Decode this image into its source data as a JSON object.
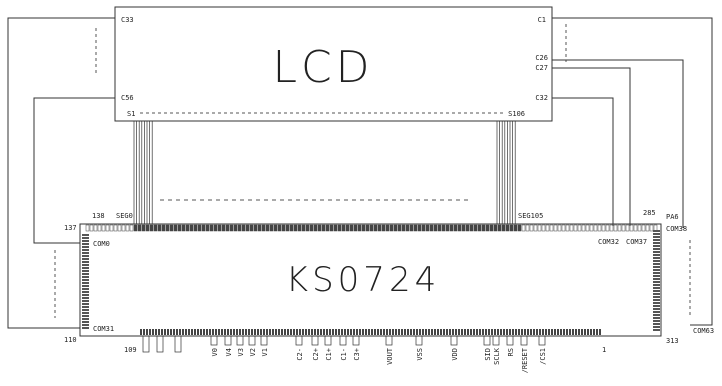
{
  "lcd": {
    "title": "LCD",
    "corner_top_left": "C33",
    "corner_top_right": "C1",
    "left_mid": "C56",
    "right_labels": [
      "C26",
      "C27",
      "C32"
    ],
    "seg_left": "S1",
    "seg_right": "S106"
  },
  "ic": {
    "title": "KS0724",
    "top_labels": {
      "n138": "138",
      "seg0": "SEG0",
      "seg105": "SEG105",
      "n285": "285",
      "com32": "COM32",
      "com37": "COM37"
    },
    "left_labels": {
      "n137": "137",
      "com0": "COM0",
      "com31": "COM31",
      "n110": "110"
    },
    "right_labels": {
      "pa6": "PA6",
      "com38": "COM38",
      "com63": "COM63",
      "n313": "313"
    },
    "bottom_labels": {
      "n109": "109",
      "n1": "1"
    },
    "bottom_pins": [
      "V0",
      "V4",
      "V3",
      "V2",
      "V1",
      "C2-",
      "C2+",
      "C1+",
      "C1-",
      "C3+",
      "VOUT",
      "VSS",
      "VDD",
      "SID",
      "SCLK",
      "RS",
      "/RESET",
      "/CS1"
    ]
  }
}
